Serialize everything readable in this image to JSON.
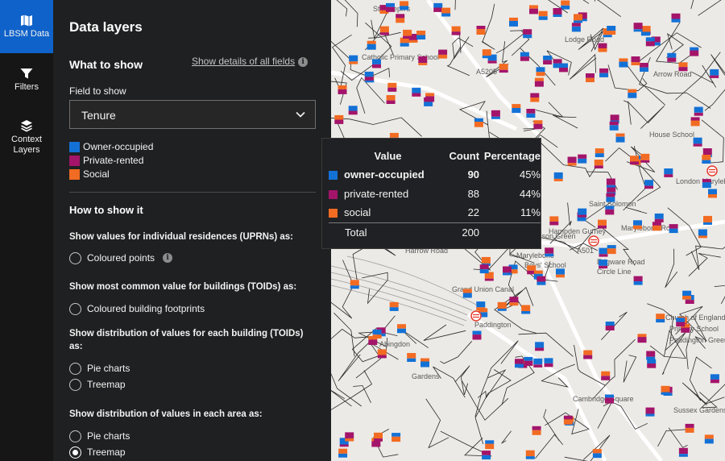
{
  "rail": {
    "items": [
      {
        "label": "LBSM Data",
        "icon": "map-icon",
        "active": true
      },
      {
        "label": "Filters",
        "icon": "filter-icon",
        "active": false
      },
      {
        "label": "Context Layers",
        "icon": "layers-icon",
        "active": false
      }
    ]
  },
  "panel": {
    "title": "Data layers",
    "what_title": "What to show",
    "details_link": "Show details of all fields",
    "field_label": "Field to show",
    "field_value": "Tenure",
    "legend": [
      {
        "label": "Owner-occupied",
        "color": "#1371d6"
      },
      {
        "label": "Private-rented",
        "color": "#a3146a"
      },
      {
        "label": "Social",
        "color": "#f26b22"
      }
    ],
    "how_title": "How to show it",
    "uprn_heading": "Show values for individual residences (UPRNs) as:",
    "uprn_option": "Coloured points",
    "toid_common_heading": "Show most common value for buildings (TOIDs) as:",
    "toid_common_option": "Coloured building footprints",
    "toid_dist_heading": "Show distribution of values for each building (TOIDs) as:",
    "toid_dist_options": [
      "Pie charts",
      "Treemap"
    ],
    "area_heading": "Show distribution of values in each area as:",
    "area_options": [
      "Pie charts",
      "Treemap"
    ],
    "area_selected": "Treemap"
  },
  "tooltip": {
    "headers": [
      "Value",
      "Count",
      "Percentage"
    ],
    "rows": [
      {
        "value": "owner-occupied",
        "count": "90",
        "percentage": "45%",
        "color": "#1371d6",
        "bold": true
      },
      {
        "value": "private-rented",
        "count": "88",
        "percentage": "44%",
        "color": "#a3146a",
        "bold": false
      },
      {
        "value": "social",
        "count": "22",
        "percentage": "11%",
        "color": "#f26b22",
        "bold": false
      }
    ],
    "total_label": "Total",
    "total_count": "200"
  },
  "map": {
    "labels": [
      "St Joseph's",
      "Catholic Primary School",
      "Lodge Road",
      "A5205",
      "Arrow Road",
      "London Marylebone",
      "Saint Solomon",
      "Lisson Green",
      "A501",
      "Marylebone Road",
      "Edgware Road",
      "Circle Line",
      "Marylebone",
      "Boys' School",
      "Grand Union Canal",
      "Paddington",
      "Harrow Road",
      "Hampden Gurney",
      "Church of England",
      "Primary School",
      "Paddington Green",
      "Abingdon",
      "House School",
      "Gardens",
      "Cambridge Square",
      "Sussex Gardens"
    ]
  }
}
